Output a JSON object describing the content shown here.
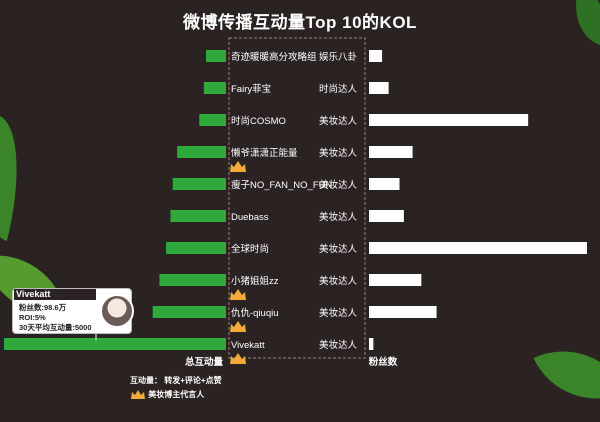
{
  "title": "微博传播互动量Top 10的KOL",
  "colors": {
    "background": "#2b2321",
    "interaction_bar": "#2faa3a",
    "follower_bar": "#ffffff",
    "crown": "#f2a93b",
    "leaf": "#3c8f2b"
  },
  "chart_data": {
    "type": "bar",
    "categories": [
      "奇迹暖暖高分攻略组",
      "Fairy菲宝",
      "时尚COSMO",
      "懒爷潇潇正能量",
      "瘦子NO_FAN_NO_FUN",
      "Duebass",
      "全球时尚",
      "小猪姐姐zz",
      "仇仇-qiuqiu",
      "Vivekatt"
    ],
    "labels": [
      "奇迹暖暖高分攻略组",
      "Fairy菲宝",
      "时尚COSMO",
      "懒爷潇潇正能量",
      "瘦子NO_FAN_NO_FUN",
      "Duebass",
      "全球时尚",
      "小猪姐姐zz",
      "仇仇-qiuqiu",
      "Vivekatt"
    ],
    "types": [
      "娱乐八卦",
      "时尚达人",
      "美妆达人",
      "美妆达人",
      "美妆达人",
      "美妆达人",
      "美妆达人",
      "美妆达人",
      "美妆达人",
      "美妆达人"
    ],
    "crowned": [
      false,
      false,
      false,
      true,
      false,
      false,
      false,
      true,
      true,
      true
    ],
    "series": [
      {
        "name": "总互动量",
        "values": [
          0.09,
          0.1,
          0.12,
          0.22,
          0.24,
          0.25,
          0.27,
          0.3,
          0.33,
          1.0
        ]
      },
      {
        "name": "粉丝数",
        "values": [
          0.06,
          0.09,
          0.73,
          0.2,
          0.14,
          0.16,
          1.0,
          0.24,
          0.31,
          0.02
        ]
      }
    ],
    "interaction_label": "总互动量",
    "follower_label": "粉丝数",
    "ylim": [
      0,
      1
    ]
  },
  "callout": {
    "name": "Vivekatt",
    "lines": [
      "粉丝数:98.6万",
      "ROI:5%",
      "30天平均互动量:5000"
    ]
  },
  "legend": {
    "interaction_key": "互动量：",
    "interaction_desc": "转发+评论+点赞",
    "crown_desc": "美妆博主代言人"
  }
}
